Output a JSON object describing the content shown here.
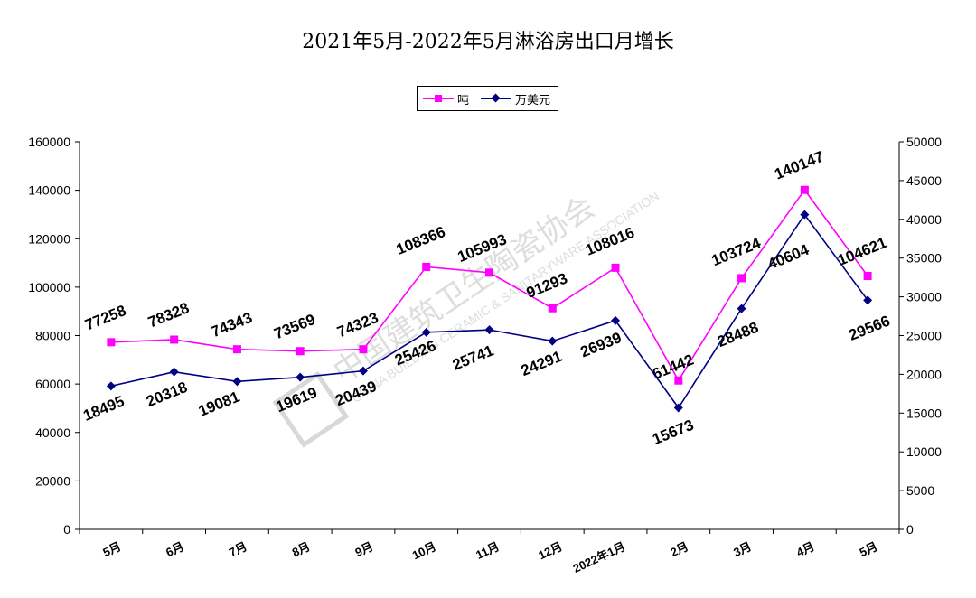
{
  "chart_data": {
    "type": "line",
    "title": "2021年5月-2022年5月淋浴房出口月增长",
    "categories": [
      "5月",
      "6月",
      "7月",
      "8月",
      "9月",
      "10月",
      "11月",
      "12月",
      "2022年1月",
      "2月",
      "3月",
      "4月",
      "5月"
    ],
    "series": [
      {
        "name": "吨",
        "axis": "left",
        "color": "#ff00ff",
        "values": [
          77258,
          78328,
          74343,
          73569,
          74323,
          108366,
          105993,
          91293,
          108016,
          61442,
          103724,
          140147,
          104621
        ],
        "labels": [
          "77258",
          "78328",
          "74343",
          "73569",
          "74323",
          "108366",
          "105993",
          "91293",
          "108016",
          "61442",
          "103724",
          "140147",
          "104621"
        ]
      },
      {
        "name": "万美元",
        "axis": "right",
        "color": "#000080",
        "values": [
          18495,
          20318,
          19081,
          19619,
          20439,
          25426,
          25741,
          24291,
          26939,
          15673,
          28488,
          40604,
          29566
        ],
        "labels": [
          "18495",
          "20318",
          "19081",
          "19619",
          "20439",
          "25426",
          "25741",
          "24291",
          "26939",
          "15673",
          "28488",
          "40604",
          "29566"
        ]
      }
    ],
    "y_left": {
      "min": 0,
      "max": 160000,
      "step": 20000,
      "ticks": [
        "0",
        "20000",
        "40000",
        "60000",
        "80000",
        "100000",
        "120000",
        "140000",
        "160000"
      ]
    },
    "y_right": {
      "min": 0,
      "max": 50000,
      "step": 5000,
      "ticks": [
        "0",
        "5000",
        "10000",
        "15000",
        "20000",
        "25000",
        "30000",
        "35000",
        "40000",
        "45000",
        "50000"
      ]
    },
    "legend_position": "top-center",
    "grid": false
  },
  "watermark": {
    "cn": "中国建筑卫生陶瓷协会",
    "en": "CHINA BUILDING CERAMIC & SANITARYWARE ASSOCIATION"
  }
}
